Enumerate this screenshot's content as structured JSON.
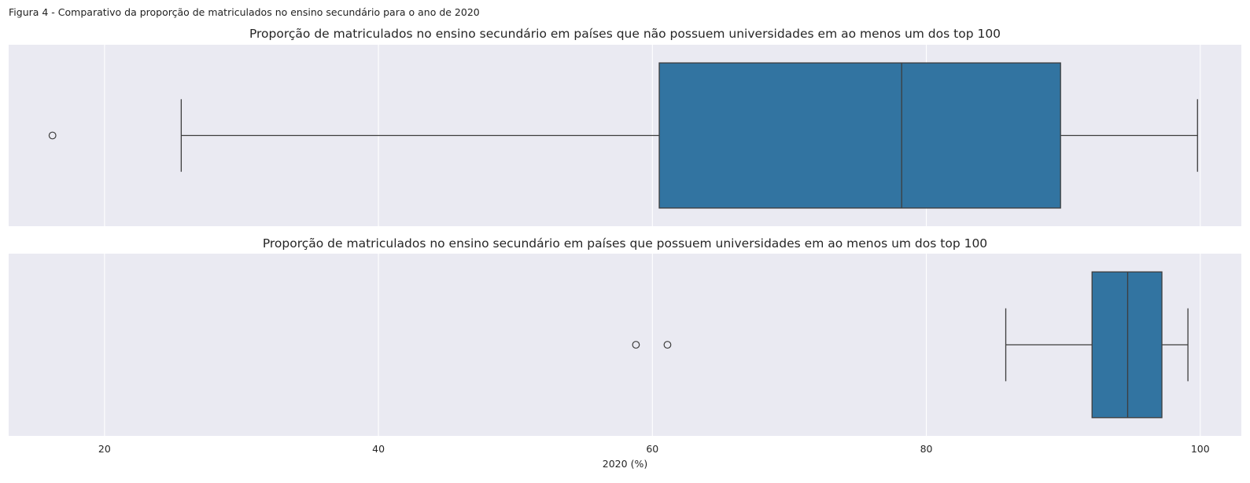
{
  "figure": {
    "caption": "Figura 4 - Comparativo da proporção de matriculados no ensino secundário para o ano de 2020"
  },
  "colors": {
    "plot_background": "#eaeaf2",
    "grid": "#ffffff",
    "box_fill": "#3274a1",
    "line": "#3d3d3d"
  },
  "chart_data": [
    {
      "type": "box",
      "title": "Proporção de matriculados no ensino secundário em países que não possuem universidades em ao menos um dos top 100",
      "orientation": "horizontal",
      "xlim": [
        13,
        103
      ],
      "xticks": [
        20,
        40,
        60,
        80,
        100
      ],
      "xlabel": "",
      "grid": true,
      "box": {
        "whisker_low": 25.6,
        "q1": 60.5,
        "median": 78.2,
        "q3": 89.8,
        "whisker_high": 99.8
      },
      "outliers": [
        16.2
      ]
    },
    {
      "type": "box",
      "title": "Proporção de matriculados no ensino secundário em países que possuem universidades em ao menos um dos top 100",
      "orientation": "horizontal",
      "xlim": [
        13,
        103
      ],
      "xticks": [
        20,
        40,
        60,
        80,
        100
      ],
      "xlabel": "2020 (%)",
      "grid": true,
      "box": {
        "whisker_low": 85.8,
        "q1": 92.1,
        "median": 94.7,
        "q3": 97.2,
        "whisker_high": 99.1
      },
      "outliers": [
        58.8,
        61.1
      ]
    }
  ]
}
